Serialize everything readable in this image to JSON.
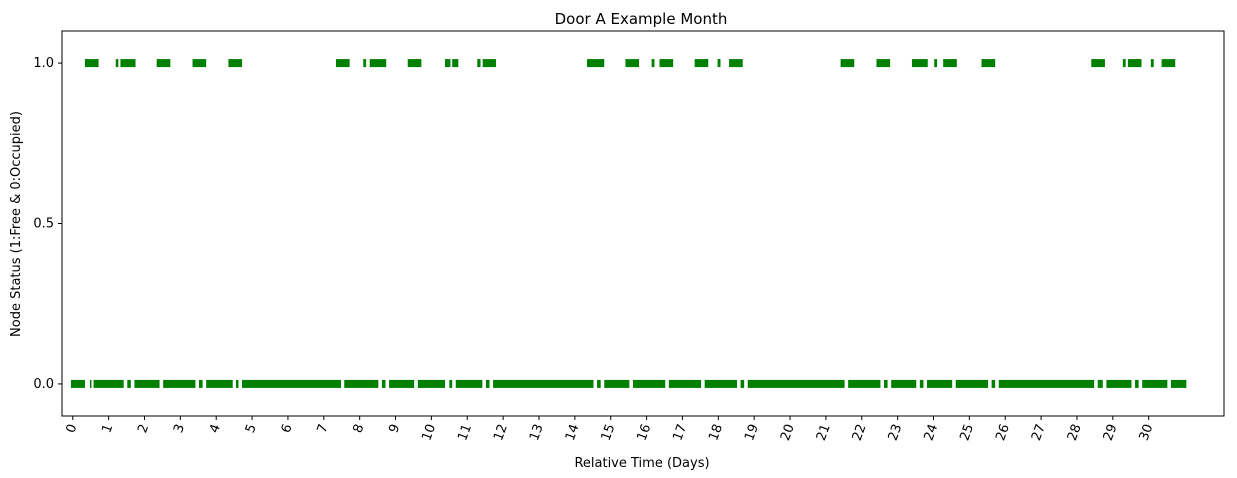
{
  "chart_data": {
    "type": "scatter",
    "title": "Door A Example Month",
    "xlabel": "Relative Time (Days)",
    "ylabel": "Node Status (1:Free & 0:Occupied)",
    "xlim": [
      -0.3,
      32.1
    ],
    "ylim": [
      -0.1,
      1.1
    ],
    "x_ticks": [
      0,
      1,
      2,
      3,
      4,
      5,
      6,
      7,
      8,
      9,
      10,
      11,
      12,
      13,
      14,
      15,
      16,
      17,
      18,
      19,
      20,
      21,
      22,
      23,
      24,
      25,
      26,
      27,
      28,
      29,
      30
    ],
    "x_tick_labels": [
      "0",
      "1",
      "2",
      "3",
      "4",
      "5",
      "6",
      "7",
      "8",
      "9",
      "10",
      "11",
      "12",
      "13",
      "14",
      "15",
      "16",
      "17",
      "18",
      "19",
      "20",
      "21",
      "22",
      "23",
      "24",
      "25",
      "26",
      "27",
      "28",
      "29",
      "30"
    ],
    "y_ticks": [
      0.0,
      0.5,
      1.0
    ],
    "y_tick_labels": [
      "0.0",
      "0.5",
      "1.0"
    ],
    "grid": false,
    "color": "#008000",
    "series": [
      {
        "y": 1.0,
        "intervals": [
          [
            0.34,
            0.72
          ],
          [
            1.2,
            1.27
          ],
          [
            1.33,
            1.75
          ],
          [
            2.34,
            2.72
          ],
          [
            3.34,
            3.72
          ],
          [
            4.34,
            4.72
          ],
          [
            7.34,
            7.72
          ],
          [
            8.1,
            8.18
          ],
          [
            8.28,
            8.74
          ],
          [
            9.34,
            9.72
          ],
          [
            10.38,
            10.53
          ],
          [
            10.58,
            10.75
          ],
          [
            11.28,
            11.37
          ],
          [
            11.43,
            11.8
          ],
          [
            14.34,
            14.82
          ],
          [
            15.41,
            15.79
          ],
          [
            16.14,
            16.22
          ],
          [
            16.36,
            16.74
          ],
          [
            17.34,
            17.72
          ],
          [
            17.98,
            18.06
          ],
          [
            18.3,
            18.68
          ],
          [
            21.41,
            21.79
          ],
          [
            22.41,
            22.79
          ],
          [
            23.4,
            23.84
          ],
          [
            24.02,
            24.1
          ],
          [
            24.27,
            24.65
          ],
          [
            25.34,
            25.72
          ],
          [
            28.4,
            28.78
          ],
          [
            29.28,
            29.36
          ],
          [
            29.42,
            29.8
          ],
          [
            30.06,
            30.14
          ],
          [
            30.36,
            30.74
          ]
        ]
      },
      {
        "y": 0.0,
        "intervals": [
          [
            -0.05,
            0.34
          ],
          [
            0.48,
            0.52
          ],
          [
            0.58,
            1.42
          ],
          [
            1.52,
            1.62
          ],
          [
            1.72,
            2.42
          ],
          [
            2.52,
            3.42
          ],
          [
            3.52,
            3.62
          ],
          [
            3.72,
            4.46
          ],
          [
            4.55,
            4.62
          ],
          [
            4.72,
            7.48
          ],
          [
            7.57,
            8.52
          ],
          [
            8.62,
            8.72
          ],
          [
            8.82,
            9.52
          ],
          [
            9.62,
            10.38
          ],
          [
            10.5,
            10.58
          ],
          [
            10.68,
            11.42
          ],
          [
            11.52,
            11.62
          ],
          [
            11.72,
            14.52
          ],
          [
            14.62,
            14.72
          ],
          [
            14.82,
            15.52
          ],
          [
            15.62,
            16.52
          ],
          [
            16.62,
            17.52
          ],
          [
            17.62,
            18.52
          ],
          [
            18.62,
            18.72
          ],
          [
            18.82,
            21.52
          ],
          [
            21.62,
            22.52
          ],
          [
            22.62,
            22.72
          ],
          [
            22.82,
            23.52
          ],
          [
            23.62,
            23.72
          ],
          [
            23.82,
            24.52
          ],
          [
            24.62,
            25.52
          ],
          [
            25.62,
            25.72
          ],
          [
            25.82,
            28.48
          ],
          [
            28.58,
            28.72
          ],
          [
            28.82,
            29.52
          ],
          [
            29.62,
            29.72
          ],
          [
            29.82,
            30.52
          ],
          [
            30.62,
            31.05
          ]
        ]
      }
    ]
  }
}
